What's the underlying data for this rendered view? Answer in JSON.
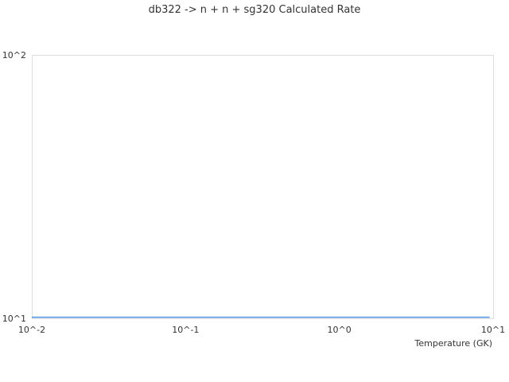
{
  "chart_data": {
    "type": "line",
    "title": "db322 -> n + n + sg320 Calculated Rate",
    "xlabel": "Temperature (GK)",
    "ylabel": "",
    "xscale": "log",
    "yscale": "log",
    "xlim": [
      0.01,
      10
    ],
    "ylim": [
      10,
      100
    ],
    "xticks": [
      "10^-2",
      "10^-1",
      "10^0",
      "10^1"
    ],
    "yticks": [
      "10^1",
      "10^2"
    ],
    "grid": false,
    "series": [
      {
        "color": "#4a90e2",
        "x": [
          0.01,
          0.1,
          1,
          9.5
        ],
        "y": [
          10.1,
          10.1,
          10.1,
          10.1
        ]
      }
    ]
  }
}
